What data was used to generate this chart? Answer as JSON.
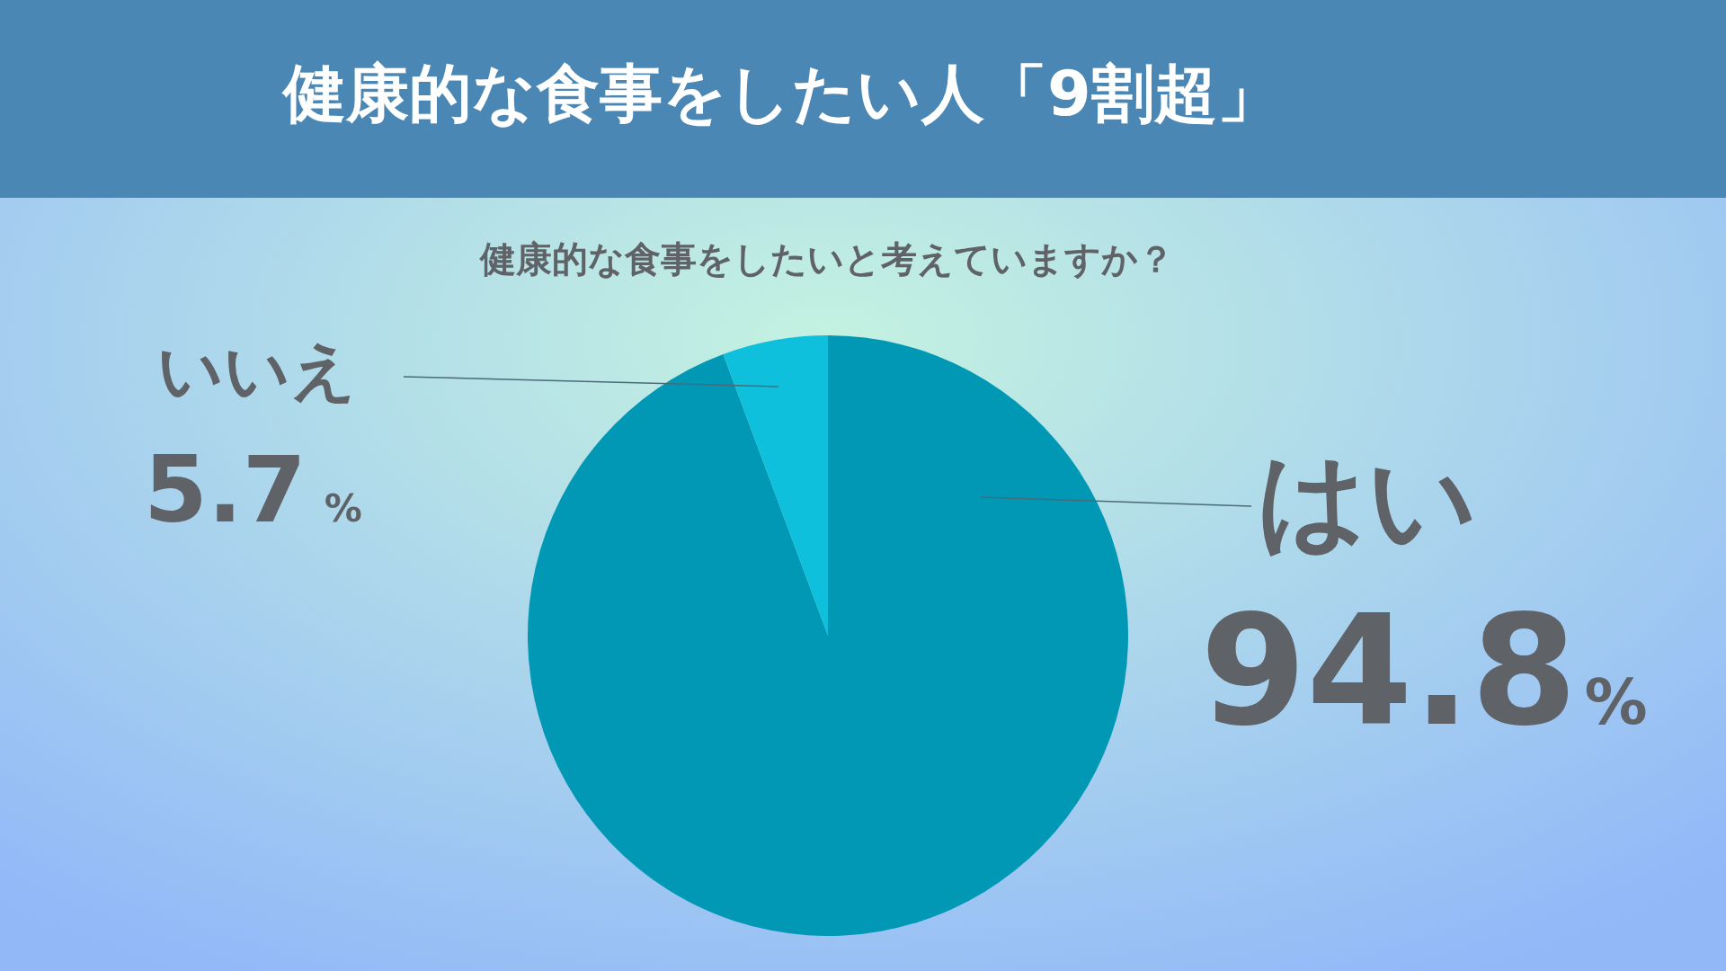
{
  "chart_data": {
    "type": "pie",
    "title": "健康的な食事をしたい人「9割超」",
    "subtitle": "健康的な食事をしたいと考えていますか？",
    "categories": [
      "はい",
      "いいえ"
    ],
    "values": [
      94.8,
      5.7
    ],
    "colors": [
      "#0098b4",
      "#0fc0dc"
    ],
    "value_labels": [
      "94.8%",
      "5.7%"
    ]
  }
}
